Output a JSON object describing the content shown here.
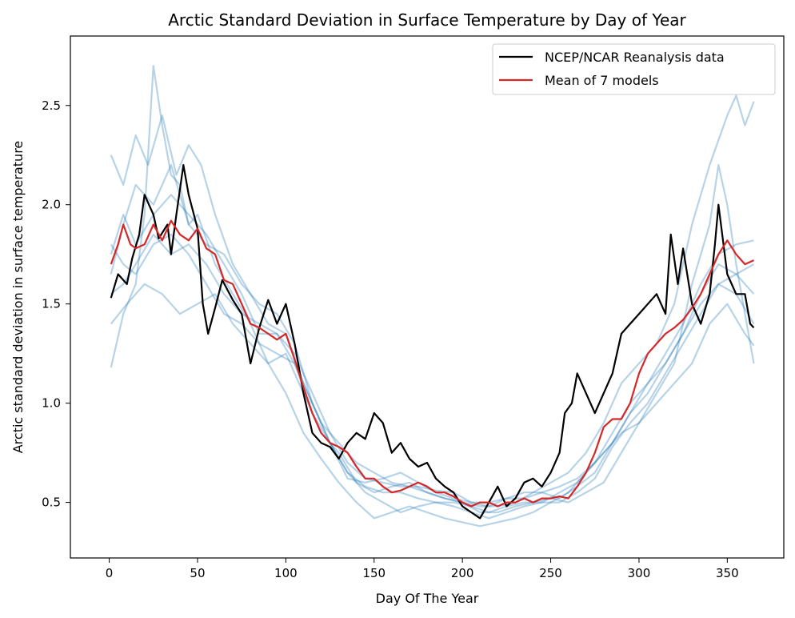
{
  "chart_data": {
    "type": "line",
    "title": "Arctic Standard Deviation in Surface Temperature by Day of Year",
    "xlabel": "Day Of The Year",
    "ylabel": "Arctic standard deviation in surface temperature",
    "xlim": [
      -22,
      382
    ],
    "ylim": [
      0.22,
      2.85
    ],
    "xticks": [
      "0",
      "50",
      "100",
      "150",
      "200",
      "250",
      "300",
      "350"
    ],
    "yticks": [
      "0.5",
      "1.0",
      "1.5",
      "2.0",
      "2.5"
    ],
    "legend": {
      "placement": "top-right",
      "entries": [
        "NCEP/NCAR Reanalysis data",
        "Mean of 7 models"
      ]
    },
    "grid": false,
    "colors": {
      "reanalysis": "#000000",
      "mean": "#d62728",
      "models": "#1f77b4"
    },
    "series": [
      {
        "name": "NCEP/NCAR Reanalysis data",
        "color": "#000000",
        "x": [
          1,
          5,
          10,
          13,
          17,
          20,
          25,
          28,
          33,
          35,
          38,
          42,
          45,
          50,
          53,
          56,
          60,
          64,
          70,
          75,
          80,
          85,
          90,
          95,
          100,
          105,
          110,
          115,
          120,
          125,
          130,
          135,
          140,
          145,
          150,
          155,
          160,
          165,
          170,
          175,
          180,
          185,
          190,
          195,
          200,
          205,
          210,
          215,
          220,
          225,
          230,
          235,
          240,
          245,
          250,
          255,
          258,
          262,
          265,
          270,
          275,
          280,
          285,
          290,
          295,
          300,
          305,
          310,
          315,
          318,
          322,
          325,
          330,
          335,
          340,
          343,
          345,
          350,
          355,
          360,
          363,
          365
        ],
        "y": [
          1.53,
          1.65,
          1.6,
          1.73,
          1.85,
          2.05,
          1.95,
          1.83,
          1.9,
          1.75,
          1.95,
          2.2,
          2.05,
          1.88,
          1.5,
          1.35,
          1.48,
          1.62,
          1.52,
          1.45,
          1.2,
          1.38,
          1.52,
          1.4,
          1.5,
          1.3,
          1.05,
          0.85,
          0.8,
          0.78,
          0.72,
          0.8,
          0.85,
          0.82,
          0.95,
          0.9,
          0.75,
          0.8,
          0.72,
          0.68,
          0.7,
          0.62,
          0.58,
          0.55,
          0.48,
          0.45,
          0.42,
          0.5,
          0.58,
          0.48,
          0.52,
          0.6,
          0.62,
          0.58,
          0.65,
          0.75,
          0.95,
          1.0,
          1.15,
          1.05,
          0.95,
          1.05,
          1.15,
          1.35,
          1.4,
          1.45,
          1.5,
          1.55,
          1.45,
          1.85,
          1.6,
          1.78,
          1.5,
          1.4,
          1.55,
          1.8,
          2.0,
          1.65,
          1.55,
          1.55,
          1.4,
          1.38
        ]
      },
      {
        "name": "Mean of 7 models",
        "color": "#d62728",
        "x": [
          1,
          5,
          8,
          12,
          15,
          20,
          25,
          30,
          35,
          40,
          45,
          50,
          55,
          60,
          65,
          70,
          75,
          80,
          85,
          90,
          95,
          100,
          105,
          110,
          115,
          120,
          125,
          130,
          135,
          140,
          145,
          150,
          155,
          160,
          165,
          170,
          175,
          180,
          185,
          190,
          195,
          200,
          205,
          210,
          215,
          220,
          225,
          230,
          235,
          240,
          245,
          250,
          255,
          260,
          265,
          270,
          275,
          280,
          285,
          290,
          295,
          300,
          305,
          310,
          315,
          320,
          325,
          330,
          335,
          340,
          345,
          350,
          355,
          360,
          365
        ],
        "y": [
          1.7,
          1.8,
          1.9,
          1.8,
          1.78,
          1.8,
          1.9,
          1.82,
          1.92,
          1.85,
          1.82,
          1.88,
          1.78,
          1.75,
          1.62,
          1.6,
          1.5,
          1.4,
          1.38,
          1.35,
          1.32,
          1.35,
          1.22,
          1.08,
          0.95,
          0.85,
          0.8,
          0.78,
          0.75,
          0.68,
          0.62,
          0.62,
          0.58,
          0.55,
          0.56,
          0.58,
          0.6,
          0.58,
          0.55,
          0.55,
          0.53,
          0.5,
          0.48,
          0.5,
          0.5,
          0.48,
          0.5,
          0.5,
          0.52,
          0.5,
          0.52,
          0.52,
          0.53,
          0.52,
          0.58,
          0.65,
          0.75,
          0.88,
          0.92,
          0.92,
          1.0,
          1.15,
          1.25,
          1.3,
          1.35,
          1.38,
          1.42,
          1.48,
          1.55,
          1.65,
          1.75,
          1.82,
          1.75,
          1.7,
          1.72
        ]
      },
      {
        "name": "",
        "color": "#1f77b4",
        "x": [
          1,
          8,
          15,
          22,
          30,
          38,
          45,
          52,
          60,
          70,
          80,
          90,
          100,
          110,
          120,
          130,
          140,
          150,
          160,
          170,
          180,
          190,
          200,
          210,
          220,
          230,
          240,
          250,
          260,
          270,
          280,
          290,
          300,
          310,
          320,
          330,
          340,
          350,
          355,
          360,
          365
        ],
        "y": [
          2.25,
          2.1,
          2.35,
          2.2,
          2.45,
          2.15,
          2.3,
          2.2,
          1.95,
          1.7,
          1.55,
          1.4,
          1.35,
          1.1,
          0.9,
          0.8,
          0.7,
          0.65,
          0.6,
          0.58,
          0.55,
          0.52,
          0.5,
          0.48,
          0.48,
          0.5,
          0.55,
          0.6,
          0.65,
          0.75,
          0.9,
          1.1,
          1.2,
          1.3,
          1.5,
          1.9,
          2.2,
          2.45,
          2.55,
          2.4,
          2.52
        ]
      },
      {
        "name": "",
        "color": "#1f77b4",
        "x": [
          1,
          8,
          15,
          20,
          25,
          30,
          35,
          40,
          45,
          50,
          60,
          70,
          80,
          90,
          100,
          110,
          120,
          130,
          140,
          150,
          160,
          170,
          180,
          190,
          200,
          210,
          220,
          230,
          240,
          250,
          260,
          270,
          280,
          290,
          300,
          310,
          320,
          330,
          340,
          345,
          350,
          355,
          360,
          365
        ],
        "y": [
          1.18,
          1.45,
          1.6,
          1.95,
          2.7,
          2.4,
          2.15,
          2.1,
          1.9,
          1.95,
          1.7,
          1.55,
          1.4,
          1.2,
          1.05,
          0.85,
          0.72,
          0.6,
          0.5,
          0.42,
          0.45,
          0.48,
          0.45,
          0.42,
          0.4,
          0.38,
          0.4,
          0.42,
          0.45,
          0.5,
          0.55,
          0.65,
          0.75,
          0.85,
          0.9,
          1.05,
          1.2,
          1.6,
          1.9,
          2.2,
          2.0,
          1.7,
          1.45,
          1.2
        ]
      },
      {
        "name": "",
        "color": "#1f77b4",
        "x": [
          1,
          8,
          15,
          25,
          35,
          45,
          55,
          65,
          75,
          85,
          95,
          105,
          115,
          125,
          135,
          145,
          155,
          165,
          175,
          185,
          195,
          205,
          215,
          225,
          235,
          245,
          255,
          265,
          275,
          285,
          295,
          305,
          315,
          325,
          335,
          345,
          355,
          365
        ],
        "y": [
          1.8,
          1.7,
          1.65,
          1.8,
          1.85,
          1.75,
          1.6,
          1.45,
          1.4,
          1.3,
          1.25,
          1.2,
          1.0,
          0.8,
          0.65,
          0.55,
          0.5,
          0.45,
          0.48,
          0.5,
          0.48,
          0.45,
          0.42,
          0.45,
          0.48,
          0.5,
          0.55,
          0.6,
          0.7,
          0.8,
          0.95,
          1.1,
          1.2,
          1.35,
          1.5,
          1.6,
          1.55,
          1.4
        ]
      },
      {
        "name": "",
        "color": "#1f77b4",
        "x": [
          1,
          10,
          20,
          30,
          40,
          50,
          60,
          70,
          80,
          90,
          100,
          110,
          120,
          130,
          140,
          150,
          160,
          170,
          180,
          190,
          200,
          210,
          220,
          230,
          240,
          250,
          260,
          270,
          280,
          290,
          300,
          310,
          320,
          330,
          340,
          350,
          360,
          365
        ],
        "y": [
          1.4,
          1.5,
          1.6,
          1.55,
          1.45,
          1.5,
          1.55,
          1.4,
          1.3,
          1.2,
          1.25,
          1.05,
          0.85,
          0.75,
          0.6,
          0.55,
          0.58,
          0.6,
          0.55,
          0.52,
          0.5,
          0.45,
          0.45,
          0.48,
          0.5,
          0.52,
          0.5,
          0.55,
          0.6,
          0.75,
          0.9,
          1.0,
          1.1,
          1.2,
          1.4,
          1.5,
          1.35,
          1.29
        ]
      },
      {
        "name": "",
        "color": "#1f77b4",
        "x": [
          1,
          8,
          15,
          25,
          35,
          45,
          55,
          65,
          75,
          85,
          95,
          105,
          115,
          125,
          135,
          145,
          155,
          165,
          175,
          185,
          195,
          205,
          215,
          225,
          235,
          245,
          255,
          265,
          275,
          285,
          295,
          305,
          315,
          325,
          335,
          345,
          355,
          365
        ],
        "y": [
          1.65,
          1.9,
          2.1,
          2.0,
          2.2,
          1.9,
          1.8,
          1.75,
          1.6,
          1.5,
          1.45,
          1.3,
          1.0,
          0.8,
          0.62,
          0.6,
          0.62,
          0.65,
          0.6,
          0.55,
          0.52,
          0.5,
          0.48,
          0.52,
          0.55,
          0.55,
          0.58,
          0.62,
          0.7,
          0.85,
          1.0,
          1.1,
          1.25,
          1.4,
          1.6,
          1.75,
          1.8,
          1.82
        ]
      },
      {
        "name": "",
        "color": "#1f77b4",
        "x": [
          1,
          8,
          15,
          25,
          35,
          45,
          55,
          65,
          75,
          85,
          95,
          105,
          115,
          125,
          135,
          145,
          155,
          165,
          175,
          185,
          195,
          205,
          215,
          225,
          235,
          245,
          255,
          265,
          275,
          285,
          295,
          305,
          315,
          325,
          335,
          345,
          355,
          365
        ],
        "y": [
          1.55,
          1.6,
          1.7,
          1.85,
          1.75,
          1.8,
          1.7,
          1.55,
          1.45,
          1.4,
          1.35,
          1.25,
          1.05,
          0.85,
          0.7,
          0.62,
          0.6,
          0.58,
          0.58,
          0.56,
          0.55,
          0.5,
          0.5,
          0.52,
          0.52,
          0.55,
          0.52,
          0.58,
          0.65,
          0.8,
          0.95,
          1.05,
          1.2,
          1.35,
          1.55,
          1.7,
          1.65,
          1.55
        ]
      },
      {
        "name": "",
        "color": "#1f77b4",
        "x": [
          1,
          8,
          15,
          25,
          35,
          45,
          55,
          65,
          75,
          85,
          95,
          105,
          115,
          125,
          135,
          145,
          155,
          165,
          175,
          185,
          195,
          205,
          215,
          225,
          235,
          245,
          255,
          265,
          275,
          285,
          295,
          305,
          315,
          325,
          335,
          345,
          355,
          365
        ],
        "y": [
          1.75,
          1.95,
          1.8,
          1.95,
          2.05,
          1.95,
          1.85,
          1.7,
          1.55,
          1.35,
          1.35,
          1.2,
          0.95,
          0.8,
          0.65,
          0.58,
          0.55,
          0.55,
          0.52,
          0.5,
          0.5,
          0.48,
          0.45,
          0.48,
          0.5,
          0.5,
          0.5,
          0.55,
          0.62,
          0.78,
          0.9,
          1.0,
          1.15,
          1.3,
          1.45,
          1.6,
          1.65,
          1.7
        ]
      }
    ]
  }
}
